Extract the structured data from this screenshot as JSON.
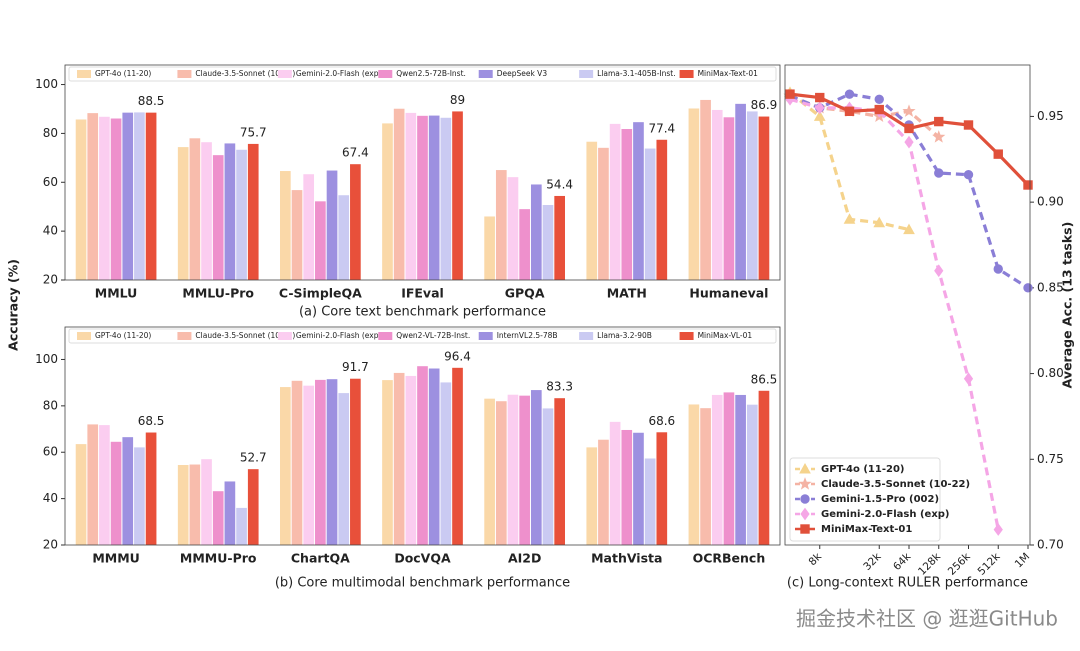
{
  "chart_data": [
    {
      "type": "bar",
      "title": "(a) Core text benchmark performance",
      "ylabel": "Accuracy (%)",
      "categories": [
        "MMLU",
        "MMLU-Pro",
        "C-SimpleQA",
        "IFEval",
        "GPQA",
        "MATH",
        "Humaneval"
      ],
      "series": [
        {
          "name": "GPT-4o (11-20)",
          "color": "#fad8a8",
          "values": [
            85.7,
            74.4,
            64.6,
            84.1,
            46.0,
            76.6,
            90.2
          ]
        },
        {
          "name": "Claude-3.5-Sonnet (10-22)",
          "color": "#f8bcac",
          "values": [
            88.3,
            78.0,
            56.8,
            90.1,
            65.0,
            74.1,
            93.7
          ]
        },
        {
          "name": "Gemini-2.0-Flash (exp)",
          "color": "#fbcdf0",
          "values": [
            86.8,
            76.4,
            63.3,
            88.4,
            62.1,
            83.9,
            89.6
          ]
        },
        {
          "name": "Qwen2.5-72B-Inst.",
          "color": "#ee90cc",
          "values": [
            86.1,
            71.1,
            52.2,
            87.2,
            49.0,
            81.8,
            86.6
          ]
        },
        {
          "name": "DeepSeek V3",
          "color": "#9d90e0",
          "values": [
            88.5,
            75.9,
            64.8,
            87.3,
            59.1,
            84.6,
            92.1
          ]
        },
        {
          "name": "Llama-3.1-405B-Inst.",
          "color": "#cacaf2",
          "values": [
            88.6,
            73.3,
            54.7,
            86.4,
            50.7,
            73.8,
            89.0
          ]
        },
        {
          "name": "MiniMax-Text-01",
          "color": "#e8503a",
          "values": [
            88.5,
            75.7,
            67.4,
            89.0,
            54.4,
            77.4,
            86.9
          ],
          "data_labels": true
        }
      ],
      "ylim": [
        20,
        108
      ],
      "yticks": [
        20,
        40,
        60,
        80,
        100
      ],
      "grid": false
    },
    {
      "type": "bar",
      "title": "(b) Core multimodal benchmark performance",
      "categories": [
        "MMMU",
        "MMMU-Pro",
        "ChartQA",
        "DocVQA",
        "AI2D",
        "MathVista",
        "OCRBench"
      ],
      "series": [
        {
          "name": "GPT-4o (11-20)",
          "color": "#fad8a8",
          "values": [
            63.5,
            54.5,
            88.1,
            91.1,
            83.1,
            62.1,
            80.6
          ]
        },
        {
          "name": "Claude-3.5-Sonnet (10-22)",
          "color": "#f8bcac",
          "values": [
            72.0,
            54.7,
            90.8,
            94.2,
            82.0,
            65.4,
            79.0
          ]
        },
        {
          "name": "Gemini-2.0-Flash (exp)",
          "color": "#fbcdf0",
          "values": [
            71.7,
            57.0,
            88.7,
            92.9,
            84.8,
            73.1,
            84.7
          ]
        },
        {
          "name": "Qwen2-VL-72B-Inst.",
          "color": "#ee90cc",
          "values": [
            64.5,
            43.2,
            91.2,
            97.1,
            84.4,
            69.6,
            85.8
          ]
        },
        {
          "name": "InternVL2.5-78B",
          "color": "#9d90e0",
          "values": [
            66.5,
            47.4,
            91.5,
            96.1,
            86.8,
            68.4,
            84.7
          ]
        },
        {
          "name": "Llama-3.2-90B",
          "color": "#cacaf2",
          "values": [
            62.1,
            36.0,
            85.5,
            90.1,
            78.9,
            57.3,
            80.5
          ]
        },
        {
          "name": "MiniMax-VL-01",
          "color": "#e8503a",
          "values": [
            68.5,
            52.7,
            91.7,
            96.4,
            83.3,
            68.6,
            86.5
          ],
          "data_labels": true
        }
      ],
      "ylim": [
        20,
        114
      ],
      "yticks": [
        20,
        40,
        60,
        80,
        100
      ],
      "grid": false
    },
    {
      "type": "line",
      "title": "(c) Long-context RULER performance",
      "ylabel": "Average Acc. (13 tasks)",
      "categories": [
        null,
        "8k",
        null,
        "32k",
        "64k",
        "128k",
        "256k",
        "512k",
        "1M"
      ],
      "series": [
        {
          "name": "GPT-4o (11-20)",
          "color": "#f5d38c",
          "dashed": true,
          "marker": "triangle",
          "values": [
            0.964,
            0.95,
            0.89,
            0.888,
            0.884,
            null,
            null,
            null,
            null
          ]
        },
        {
          "name": "Claude-3.5-Sonnet (10-22)",
          "color": "#f4b3a4",
          "dashed": true,
          "marker": "star",
          "values": [
            0.962,
            0.955,
            0.953,
            0.95,
            0.953,
            0.938,
            null,
            null,
            null
          ]
        },
        {
          "name": "Gemini-1.5-Pro (002)",
          "color": "#8a7ed6",
          "dashed": true,
          "marker": "circle",
          "values": [
            0.962,
            0.955,
            0.963,
            0.96,
            0.945,
            0.917,
            0.916,
            0.861,
            0.85
          ]
        },
        {
          "name": "Gemini-2.0-Flash (exp)",
          "color": "#f5a6e6",
          "dashed": true,
          "marker": "diamond",
          "values": [
            0.96,
            0.955,
            0.955,
            0.953,
            0.935,
            0.86,
            0.797,
            0.709,
            null
          ]
        },
        {
          "name": "MiniMax-Text-01",
          "color": "#e0503a",
          "dashed": false,
          "marker": "square",
          "values": [
            0.963,
            0.961,
            0.953,
            0.954,
            0.943,
            0.947,
            0.945,
            0.928,
            0.91
          ]
        }
      ],
      "ylim": [
        0.7,
        0.98
      ],
      "yticks": [
        {
          "value": 0.7,
          "label": "0.70"
        },
        {
          "value": 0.75,
          "label": "0.75"
        },
        {
          "value": 0.8,
          "label": "0.80"
        },
        {
          "value": 0.85,
          "label": "0.85"
        },
        {
          "value": 0.9,
          "label": "0.90"
        },
        {
          "value": 0.95,
          "label": "0.95"
        }
      ],
      "legend": "lower left",
      "grid": false
    }
  ],
  "watermark": "掘金技术社区 @ 逛逛GitHub"
}
